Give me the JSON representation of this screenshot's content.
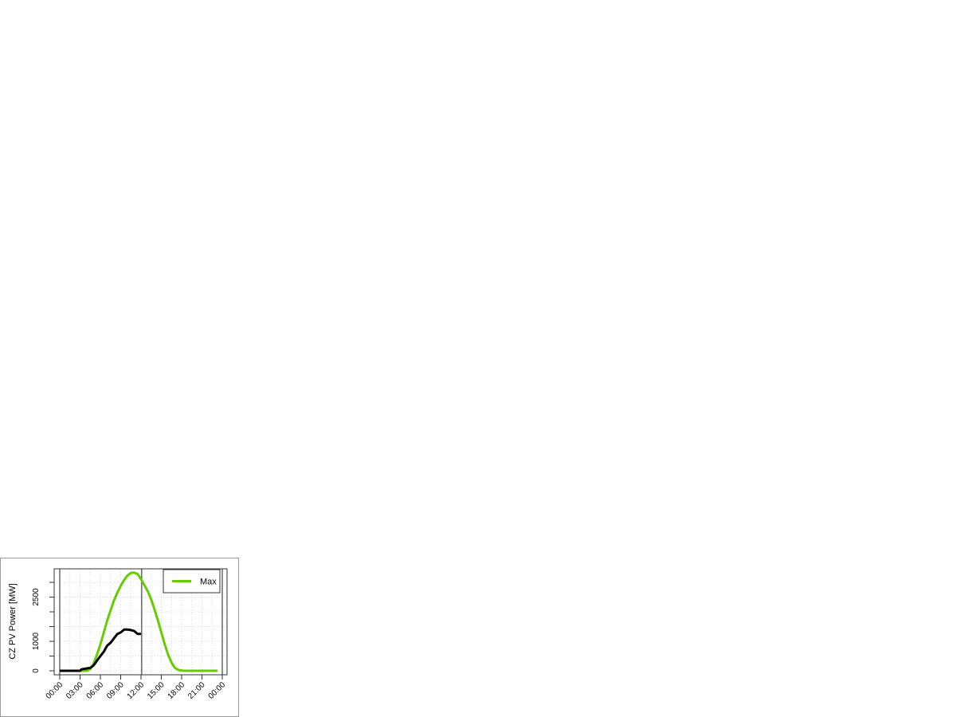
{
  "chart_data": {
    "type": "line",
    "title": "",
    "xlabel": "",
    "ylabel": "CZ PV Power [MW]",
    "xlim_hours": [
      0,
      24
    ],
    "ylim": [
      0,
      3450
    ],
    "x_tick_labels": [
      "00:00",
      "03:00",
      "06:00",
      "09:00",
      "12:00",
      "15:00",
      "18:00",
      "21:00",
      "00:00"
    ],
    "y_ticks": [
      0,
      500,
      1000,
      1500,
      2000,
      2500,
      3000
    ],
    "y_tick_labels": {
      "0": "0",
      "1000": "1000",
      "2500": "2500"
    },
    "grid": true,
    "legend_position": "top-right",
    "vertical_markers_hours": [
      0,
      12.1,
      24
    ],
    "series": [
      {
        "name": "Max",
        "color": "#66cc00",
        "x_hours": [
          0,
          4,
          4.5,
          5,
          5.5,
          6,
          6.5,
          7,
          7.5,
          8,
          8.5,
          9,
          9.5,
          10,
          10.5,
          11,
          11.5,
          12,
          12.5,
          13,
          13.5,
          14,
          14.5,
          15,
          15.5,
          16,
          16.5,
          17,
          17.5,
          18,
          18.5,
          23.3
        ],
        "values": [
          0,
          0,
          60,
          250,
          550,
          900,
          1300,
          1700,
          2050,
          2380,
          2650,
          2880,
          3080,
          3230,
          3320,
          3330,
          3280,
          3110,
          2900,
          2700,
          2420,
          2080,
          1700,
          1300,
          900,
          550,
          280,
          100,
          30,
          5,
          0,
          0
        ],
        "in_legend": true
      },
      {
        "color": "#000000",
        "x_hours": [
          0,
          3,
          3.2,
          4,
          4.5,
          5,
          5.5,
          6,
          6.5,
          7,
          7.5,
          8,
          8.5,
          9,
          9.5,
          10,
          10.5,
          11,
          11.5,
          12
        ],
        "values": [
          0,
          0,
          50,
          80,
          100,
          180,
          350,
          500,
          650,
          850,
          950,
          1100,
          1250,
          1300,
          1400,
          1400,
          1380,
          1350,
          1250,
          1250
        ],
        "in_legend": false
      }
    ]
  }
}
